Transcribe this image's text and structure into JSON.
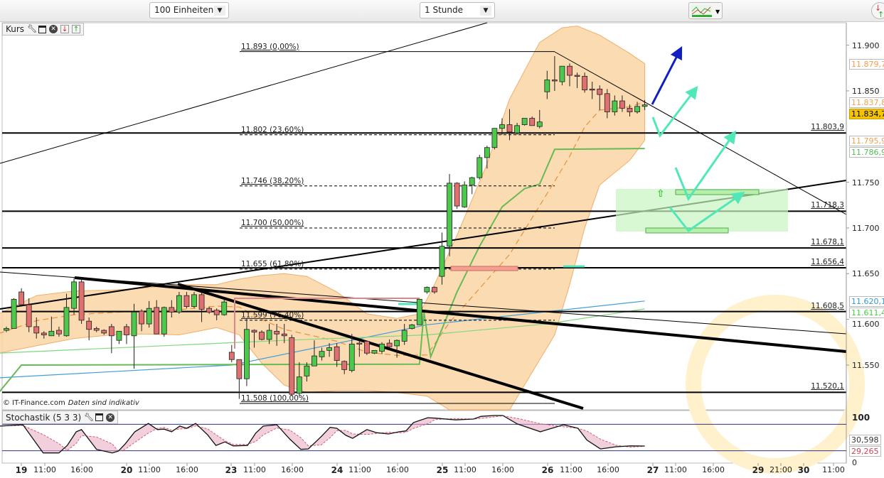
{
  "toolbar": {
    "units_select": "100 Einheiten",
    "interval_select": "1 Stunde",
    "chart_tools_icon": "indicator-chart-icon",
    "right_icon": "swap-updown-icon"
  },
  "main_panel": {
    "label": "Kurs",
    "icons": [
      "wrench-icon",
      "window-icon",
      "close-circle-icon",
      "move-down-icon",
      "move-up-icon"
    ]
  },
  "stoch_panel": {
    "label": "Stochastik (5 3 3)",
    "icons": [
      "wrench-icon",
      "window-icon",
      "close-circle-icon"
    ]
  },
  "footer": {
    "copyright": "© IT-Finance.com",
    "disclaimer": "Daten sind indikativ"
  },
  "colors": {
    "up": "#4cc94c",
    "down": "#e07070",
    "band": "#fbd5a5",
    "band_edge": "#f0a050",
    "green_line": "#66bb55",
    "ma_line": "#7ed97e",
    "blue_line": "#40a0d8",
    "arrow_blue": "#1020c0",
    "arrow_teal": "#50e8b8",
    "last_price": "#f5c400"
  },
  "chart_data": {
    "type": "candlestick",
    "ylim": [
      11501,
      11923
    ],
    "y_ticks": [
      "11.900",
      "11.850",
      "11.750",
      "11.700",
      "11.650",
      "11.600",
      "11.550"
    ],
    "y_tick_values": [
      11900,
      11850,
      11750,
      11700,
      11650,
      11600,
      11550
    ],
    "x_labels": [
      "19",
      "11:00",
      "16:00",
      "20",
      "11:00",
      "16:00",
      "23",
      "11:00",
      "16:00",
      "24",
      "11:00",
      "16:00",
      "25",
      "11:00",
      "16:00",
      "26",
      "11:00",
      "16:00",
      "27",
      "11:00",
      "16:00",
      "29",
      "21:00",
      "30",
      "11:00"
    ],
    "candles": [
      [
        11588,
        11592,
        11586,
        11590
      ],
      [
        11590,
        11623,
        11590,
        11622
      ],
      [
        11630,
        11634,
        11614,
        11616
      ],
      [
        11616,
        11623,
        11586,
        11592
      ],
      [
        11592,
        11602,
        11579,
        11585
      ],
      [
        11585,
        11587,
        11579,
        11583
      ],
      [
        11582,
        11603,
        11582,
        11587
      ],
      [
        11588,
        11592,
        11581,
        11584
      ],
      [
        11582,
        11628,
        11581,
        11613
      ],
      [
        11612,
        11645,
        11605,
        11641
      ],
      [
        11641,
        11645,
        11595,
        11599
      ],
      [
        11598,
        11602,
        11577,
        11589
      ],
      [
        11590,
        11592,
        11586,
        11588
      ],
      [
        11588,
        11589,
        11583,
        11585
      ],
      [
        11592,
        11595,
        11563,
        11582
      ],
      [
        11577,
        11587,
        11573,
        11587
      ],
      [
        11592,
        11595,
        11573,
        11583
      ],
      [
        11582,
        11617,
        11546,
        11608
      ],
      [
        11609,
        11611,
        11587,
        11595
      ],
      [
        11595,
        11620,
        11591,
        11612
      ],
      [
        11613,
        11621,
        11584,
        11584
      ],
      [
        11584,
        11614,
        11581,
        11613
      ],
      [
        11613,
        11621,
        11602,
        11608
      ],
      [
        11608,
        11630,
        11606,
        11626
      ],
      [
        11626,
        11630,
        11612,
        11614
      ],
      [
        11614,
        11630,
        11612,
        11627
      ],
      [
        11627,
        11630,
        11597,
        11611
      ],
      [
        11612,
        11614,
        11606,
        11608
      ],
      [
        11610,
        11612,
        11599,
        11605
      ],
      [
        11605,
        11622,
        11604,
        11619
      ],
      [
        11564,
        11572,
        11553,
        11556
      ],
      [
        11556,
        11556,
        11513,
        11535
      ],
      [
        11535,
        11601,
        11527,
        11589
      ],
      [
        11588,
        11589,
        11569,
        11586
      ],
      [
        11586,
        11588,
        11577,
        11578
      ],
      [
        11578,
        11595,
        11573,
        11588
      ],
      [
        11587,
        11595,
        11571,
        11584
      ],
      [
        11584,
        11595,
        11574,
        11582
      ],
      [
        11580,
        11583,
        11516,
        11518
      ],
      [
        11519,
        11553,
        11516,
        11537
      ],
      [
        11538,
        11553,
        11532,
        11549
      ],
      [
        11549,
        11577,
        11549,
        11560
      ],
      [
        11559,
        11569,
        11555,
        11565
      ],
      [
        11566,
        11574,
        11559,
        11569
      ],
      [
        11570,
        11574,
        11548,
        11555
      ],
      [
        11554,
        11555,
        11540,
        11545
      ],
      [
        11544,
        11584,
        11542,
        11573
      ],
      [
        11574,
        11577,
        11559,
        11573
      ],
      [
        11576,
        11577,
        11561,
        11563
      ],
      [
        11563,
        11566,
        11562,
        11566
      ],
      [
        11565,
        11575,
        11562,
        11573
      ],
      [
        11574,
        11578,
        11569,
        11570
      ],
      [
        11571,
        11578,
        11558,
        11577
      ],
      [
        11576,
        11595,
        11572,
        11588
      ],
      [
        11590,
        11595,
        11589,
        11594
      ],
      [
        11594,
        11622,
        11594,
        11622
      ],
      [
        11630,
        11636,
        11628,
        11635
      ],
      [
        11635,
        11636,
        11628,
        11630
      ],
      [
        11647,
        11695,
        11638,
        11680
      ],
      [
        11680,
        11759,
        11669,
        11749
      ],
      [
        11749,
        11750,
        11721,
        11724
      ],
      [
        11723,
        11751,
        11722,
        11747
      ],
      [
        11747,
        11756,
        11737,
        11755
      ],
      [
        11755,
        11780,
        11753,
        11777
      ],
      [
        11777,
        11790,
        11765,
        11788
      ],
      [
        11788,
        11809,
        11786,
        11809
      ],
      [
        11809,
        11820,
        11802,
        11813
      ],
      [
        11813,
        11830,
        11796,
        11805
      ],
      [
        11804,
        11815,
        11802,
        11812
      ],
      [
        11813,
        11820,
        11812,
        11820
      ],
      [
        11820,
        11822,
        11812,
        11812
      ],
      [
        11811,
        11829,
        11809,
        11816
      ],
      [
        11849,
        11872,
        11841,
        11862
      ],
      [
        11862,
        11888,
        11850,
        11861
      ],
      [
        11860,
        11877,
        11856,
        11877
      ],
      [
        11877,
        11880,
        11855,
        11867
      ],
      [
        11867,
        11870,
        11853,
        11866
      ],
      [
        11866,
        11870,
        11848,
        11851
      ],
      [
        11852,
        11860,
        11841,
        11851
      ],
      [
        11852,
        11856,
        11829,
        11846
      ],
      [
        11847,
        11852,
        11820,
        11827
      ],
      [
        11827,
        11845,
        11823,
        11839
      ],
      [
        11839,
        11845,
        11827,
        11831
      ],
      [
        11831,
        11835,
        11822,
        11827
      ],
      [
        11827,
        11838,
        11825,
        11833
      ],
      [
        11833,
        11840,
        11829,
        11834.7
      ]
    ],
    "bollinger_upper": [
      [
        -1,
        11606
      ],
      [
        4,
        11626
      ],
      [
        9,
        11631
      ],
      [
        14,
        11632
      ],
      [
        18,
        11634
      ],
      [
        23,
        11638
      ],
      [
        28,
        11638
      ],
      [
        31,
        11644
      ],
      [
        34,
        11648
      ],
      [
        37,
        11650
      ],
      [
        40,
        11647
      ],
      [
        44,
        11630
      ],
      [
        48,
        11606
      ],
      [
        52,
        11601
      ],
      [
        55,
        11606
      ],
      [
        57,
        11638
      ],
      [
        60,
        11692
      ],
      [
        64,
        11770
      ],
      [
        67,
        11841
      ],
      [
        71,
        11903
      ],
      [
        74,
        11919
      ],
      [
        76,
        11921
      ],
      [
        79,
        11911
      ],
      [
        83,
        11891
      ],
      [
        85,
        11879.7
      ]
    ],
    "bollinger_lower": [
      [
        -1,
        11563
      ],
      [
        4,
        11571
      ],
      [
        9,
        11579
      ],
      [
        14,
        11583
      ],
      [
        18,
        11584
      ],
      [
        23,
        11583
      ],
      [
        28,
        11591
      ],
      [
        31,
        11583
      ],
      [
        34,
        11552
      ],
      [
        37,
        11528
      ],
      [
        40,
        11520
      ],
      [
        44,
        11522
      ],
      [
        48,
        11522
      ],
      [
        52,
        11520
      ],
      [
        56,
        11516
      ],
      [
        59,
        11501
      ],
      [
        67,
        11501
      ],
      [
        73,
        11583
      ],
      [
        75,
        11638
      ],
      [
        77,
        11700
      ],
      [
        79,
        11747
      ],
      [
        83,
        11774
      ],
      [
        85,
        11795.9
      ]
    ],
    "trailing_stop": [
      [
        -1,
        11520
      ],
      [
        2,
        11550
      ],
      [
        55,
        11551
      ],
      [
        55.6,
        11608
      ],
      [
        56.5,
        11559
      ],
      [
        60,
        11630
      ],
      [
        63,
        11680
      ],
      [
        66,
        11723
      ],
      [
        69,
        11743
      ],
      [
        71,
        11748
      ],
      [
        73,
        11786
      ],
      [
        85,
        11786.9
      ]
    ],
    "moving_average": [
      [
        -1,
        11563
      ],
      [
        37,
        11577
      ],
      [
        56,
        11583
      ],
      [
        72,
        11595
      ],
      [
        85,
        11611.4
      ]
    ],
    "moving_average_long": [
      [
        -1,
        11536
      ],
      [
        30,
        11550
      ],
      [
        56,
        11594
      ],
      [
        85,
        11620.1
      ]
    ],
    "fib_levels": [
      {
        "value": 11893,
        "label": "11.893 (0,00%)"
      },
      {
        "value": 11802,
        "label": "11.802 (23,60%)"
      },
      {
        "value": 11746,
        "label": "11.746 (38,20%)"
      },
      {
        "value": 11700,
        "label": "11.700 (50,00%)"
      },
      {
        "value": 11655,
        "label": "11.655 (61,80%)"
      },
      {
        "value": 11599,
        "label": "11.599 (76,40%)"
      },
      {
        "value": 11508,
        "label": "11.508 (100,00%)"
      }
    ],
    "horizontal_lines": [
      {
        "value": 11803.9,
        "label": "11.803,9"
      },
      {
        "value": 11718.3,
        "label": "11.718,3"
      },
      {
        "value": 11678.1,
        "label": "11.678,1"
      },
      {
        "value": 11656.4,
        "label": "11.656,4"
      },
      {
        "value": 11608.5,
        "label": "11.608,5"
      },
      {
        "value": 11520.1,
        "label": "11.520,1"
      }
    ],
    "price_markers": [
      {
        "label": "11.879,7",
        "color": "#f0a050"
      },
      {
        "label": "11.837,8",
        "color": "#f0a050"
      },
      {
        "label": "11.834,7",
        "color": "#000"
      },
      {
        "label": "11.795,9",
        "color": "#f0a050"
      },
      {
        "label": "11.786,9",
        "color": "#55bb55"
      },
      {
        "label": "11.620,1",
        "color": "#3399cc"
      },
      {
        "label": "11.611,4",
        "color": "#44cc44"
      }
    ],
    "stochastic": {
      "ylim": [
        0,
        100
      ],
      "levels": [
        20,
        80
      ],
      "y_ticks": [
        "100",
        "0"
      ],
      "k_label": "30,598",
      "d_label": "29,265",
      "k": [
        [
          -0.9,
          76
        ],
        [
          2.2,
          79
        ],
        [
          4.9,
          15
        ],
        [
          7,
          15
        ],
        [
          8.1,
          32
        ],
        [
          9.3,
          63
        ],
        [
          10,
          68
        ],
        [
          12,
          23
        ],
        [
          14.1,
          15
        ],
        [
          14.9,
          19
        ],
        [
          15.8,
          35
        ],
        [
          17.1,
          63
        ],
        [
          18.9,
          82
        ],
        [
          20.1,
          68
        ],
        [
          21,
          69
        ],
        [
          22,
          63
        ],
        [
          23.1,
          76
        ],
        [
          24,
          71
        ],
        [
          25.2,
          82
        ],
        [
          26.8,
          56
        ],
        [
          27.9,
          32
        ],
        [
          29.1,
          40
        ],
        [
          30.2,
          31
        ],
        [
          32.1,
          32
        ],
        [
          33.2,
          60
        ],
        [
          34.2,
          76
        ],
        [
          36,
          79
        ],
        [
          37.7,
          47
        ],
        [
          39.2,
          23
        ],
        [
          40.2,
          24
        ],
        [
          41.9,
          52
        ],
        [
          43.1,
          73
        ],
        [
          44,
          71
        ],
        [
          45.2,
          55
        ],
        [
          46.1,
          48
        ],
        [
          48,
          68
        ],
        [
          49.3,
          61
        ],
        [
          50.9,
          58
        ],
        [
          52.3,
          63
        ],
        [
          53.2,
          65
        ],
        [
          54.2,
          84
        ],
        [
          56.1,
          95
        ],
        [
          57.1,
          94
        ],
        [
          59.8,
          90
        ],
        [
          62.2,
          92
        ],
        [
          63.2,
          98
        ],
        [
          64.9,
          100
        ],
        [
          66.1,
          100
        ],
        [
          68,
          81
        ],
        [
          71.1,
          63
        ],
        [
          74.2,
          79
        ],
        [
          76.1,
          71
        ],
        [
          77.3,
          44
        ],
        [
          79.1,
          24
        ],
        [
          81.2,
          29
        ],
        [
          83.1,
          31
        ],
        [
          85,
          30.598
        ]
      ]
    }
  }
}
